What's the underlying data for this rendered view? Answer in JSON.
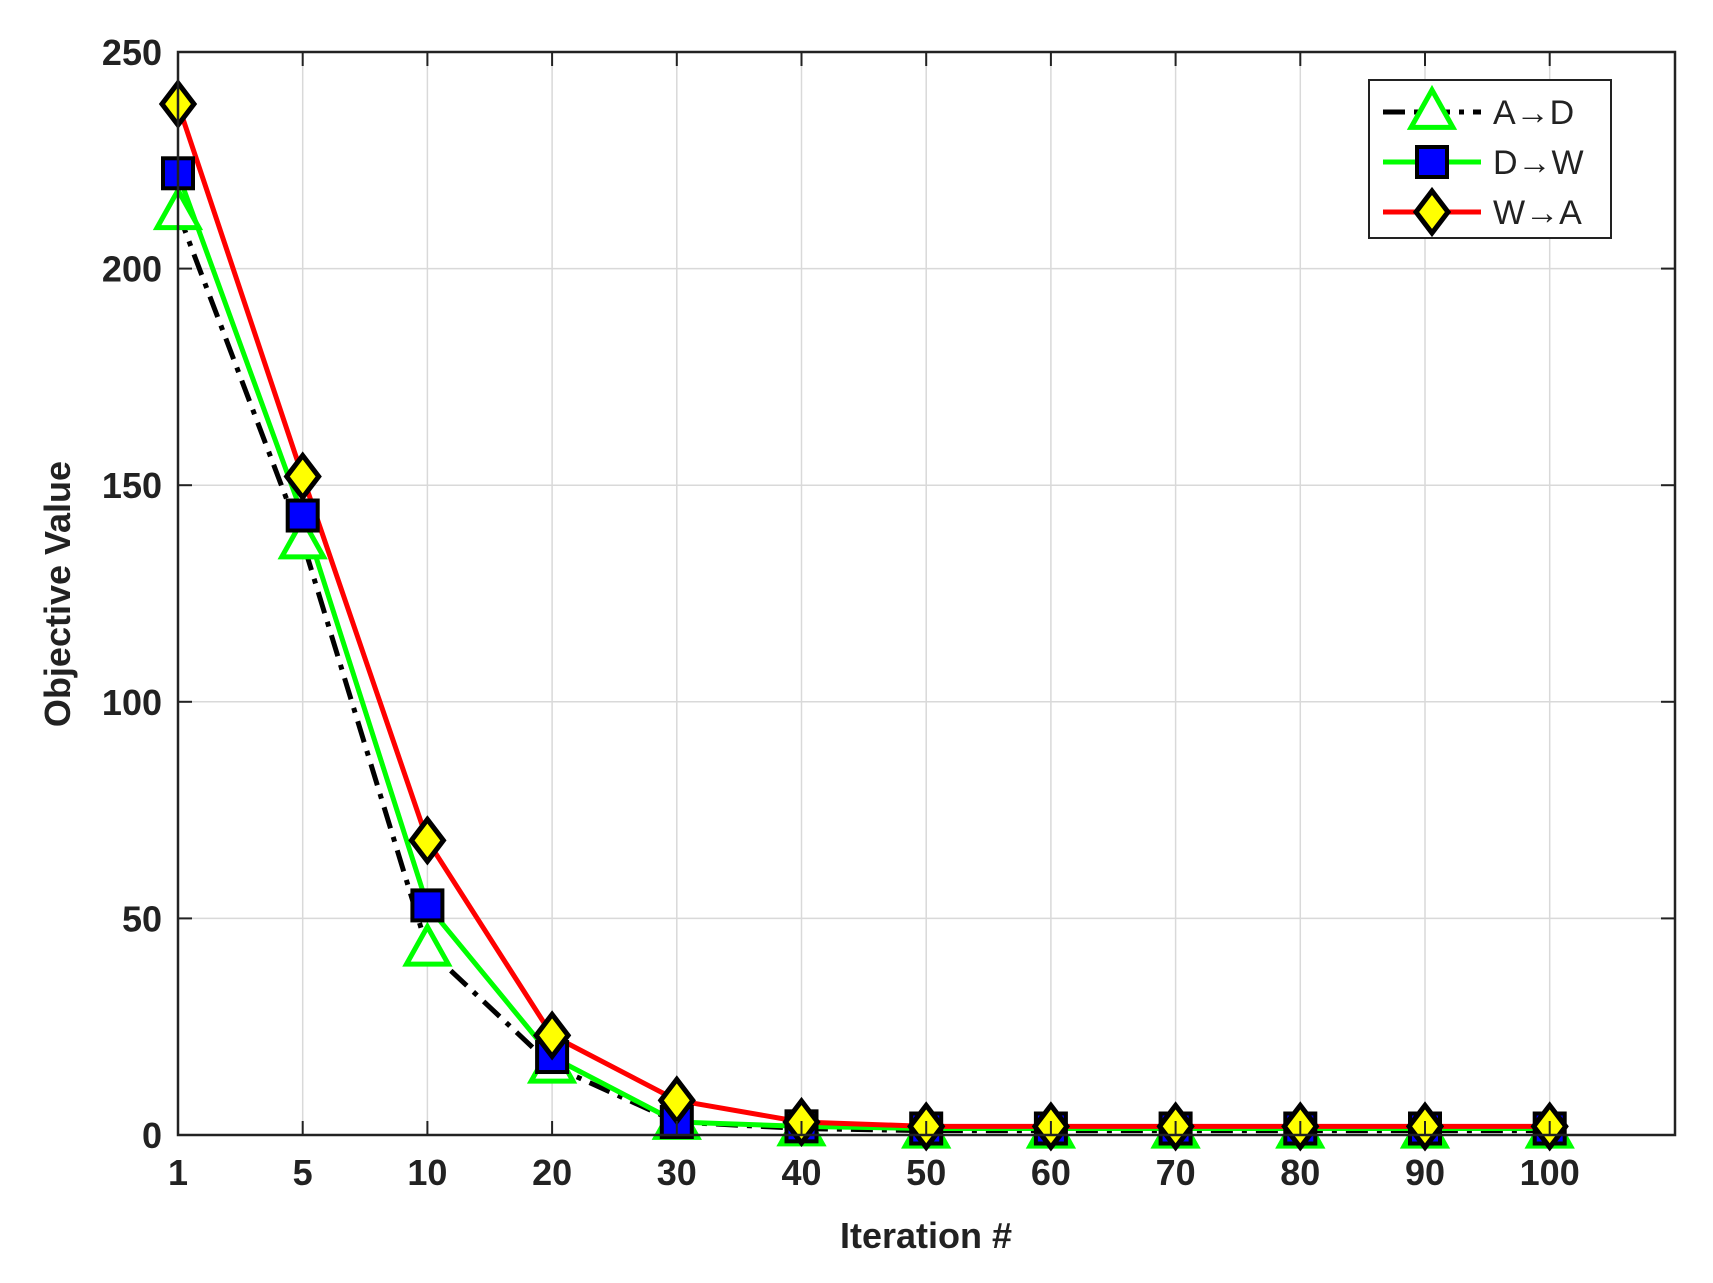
{
  "chart_data": {
    "type": "line",
    "title": "",
    "xlabel": "Iteration #",
    "ylabel": "Objective Value",
    "categories": [
      "1",
      "5",
      "10",
      "20",
      "30",
      "40",
      "50",
      "60",
      "70",
      "80",
      "90",
      "100"
    ],
    "ylim": [
      0,
      250
    ],
    "yticks": [
      "0",
      "50",
      "100",
      "150",
      "200",
      "250"
    ],
    "grid": true,
    "legend_position": "top-right",
    "series": [
      {
        "name": "A→D",
        "line_color": "#000000",
        "line_style": "dash-dot",
        "marker": "triangle",
        "marker_fill": "#ffffff",
        "marker_edge": "#00ff00",
        "values": [
          213,
          137,
          43,
          16,
          3,
          1.5,
          1,
          1,
          1,
          1,
          1,
          1
        ]
      },
      {
        "name": "D→W",
        "line_color": "#00ff00",
        "line_style": "solid",
        "marker": "square",
        "marker_fill": "#0000ff",
        "marker_edge": "#000000",
        "values": [
          222,
          143,
          53,
          18,
          3,
          2,
          1.5,
          1.5,
          1.5,
          1.5,
          1.5,
          1.5
        ]
      },
      {
        "name": "W→A",
        "line_color": "#ff0000",
        "line_style": "solid",
        "marker": "diamond",
        "marker_fill": "#ffff00",
        "marker_edge": "#000000",
        "values": [
          238,
          152,
          68,
          23,
          8,
          3,
          2,
          2,
          2,
          2,
          2,
          2
        ]
      }
    ]
  }
}
